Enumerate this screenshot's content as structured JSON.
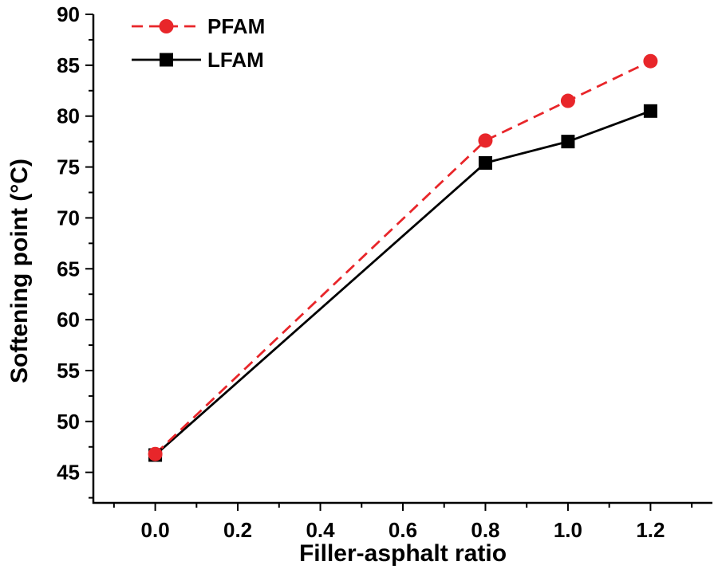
{
  "chart_data": {
    "type": "line",
    "title": "",
    "xlabel": "Filler-asphalt ratio",
    "ylabel": "Softening point (°C)",
    "xlim": [
      -0.15,
      1.35
    ],
    "ylim": [
      42,
      90
    ],
    "xticks": [
      0.0,
      0.2,
      0.4,
      0.6,
      0.8,
      1.0,
      1.2
    ],
    "yticks": [
      45,
      50,
      55,
      60,
      65,
      70,
      75,
      80,
      85,
      90
    ],
    "xtick_labels": [
      "0.0",
      "0.2",
      "0.4",
      "0.6",
      "0.8",
      "1.0",
      "1.2"
    ],
    "ytick_labels": [
      "45",
      "50",
      "55",
      "60",
      "65",
      "70",
      "75",
      "80",
      "85",
      "90"
    ],
    "grid": false,
    "legend_position": "top-left",
    "series": [
      {
        "name": "PFAM",
        "color": "#e8262a",
        "line_style": "dashed",
        "marker": "circle",
        "x": [
          0.0,
          0.8,
          1.0,
          1.2
        ],
        "y": [
          46.8,
          77.6,
          81.5,
          85.4
        ]
      },
      {
        "name": "LFAM",
        "color": "#000000",
        "line_style": "solid",
        "marker": "square",
        "x": [
          0.0,
          0.8,
          1.0,
          1.2
        ],
        "y": [
          46.7,
          75.4,
          77.5,
          80.5
        ]
      }
    ]
  }
}
